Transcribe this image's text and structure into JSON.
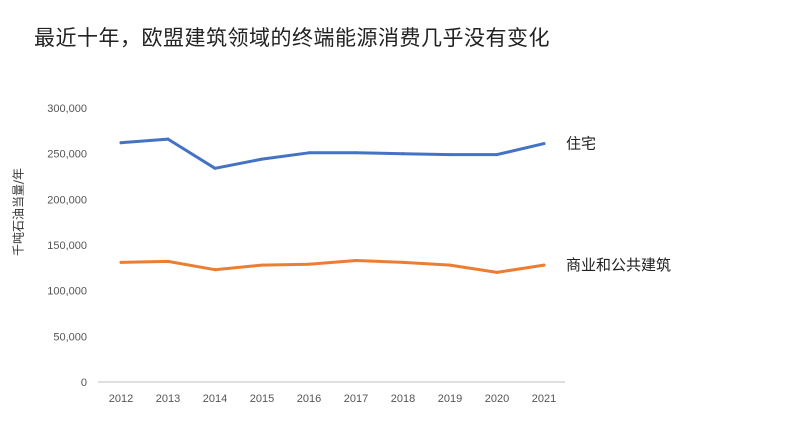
{
  "chart_data": {
    "type": "line",
    "title": "最近十年，欧盟建筑领域的终端能源消费几乎没有变化",
    "xlabel": "",
    "ylabel": "千吨石油当量/年",
    "x": [
      "2012",
      "2013",
      "2014",
      "2015",
      "2016",
      "2017",
      "2018",
      "2019",
      "2020",
      "2021"
    ],
    "ylim": [
      0,
      300000
    ],
    "yticks": [
      "0",
      "50,000",
      "100,000",
      "150,000",
      "200,000",
      "250,000",
      "300,000"
    ],
    "grid": false,
    "series": [
      {
        "name": "住宅",
        "color": "#4472C4",
        "values": [
          262000,
          266000,
          234000,
          244000,
          251000,
          251000,
          250000,
          249000,
          249000,
          261000
        ]
      },
      {
        "name": "商业和公共建筑",
        "color": "#ED7D31",
        "values": [
          131000,
          132000,
          123000,
          128000,
          129000,
          133000,
          131000,
          128000,
          120000,
          128000
        ]
      }
    ]
  }
}
